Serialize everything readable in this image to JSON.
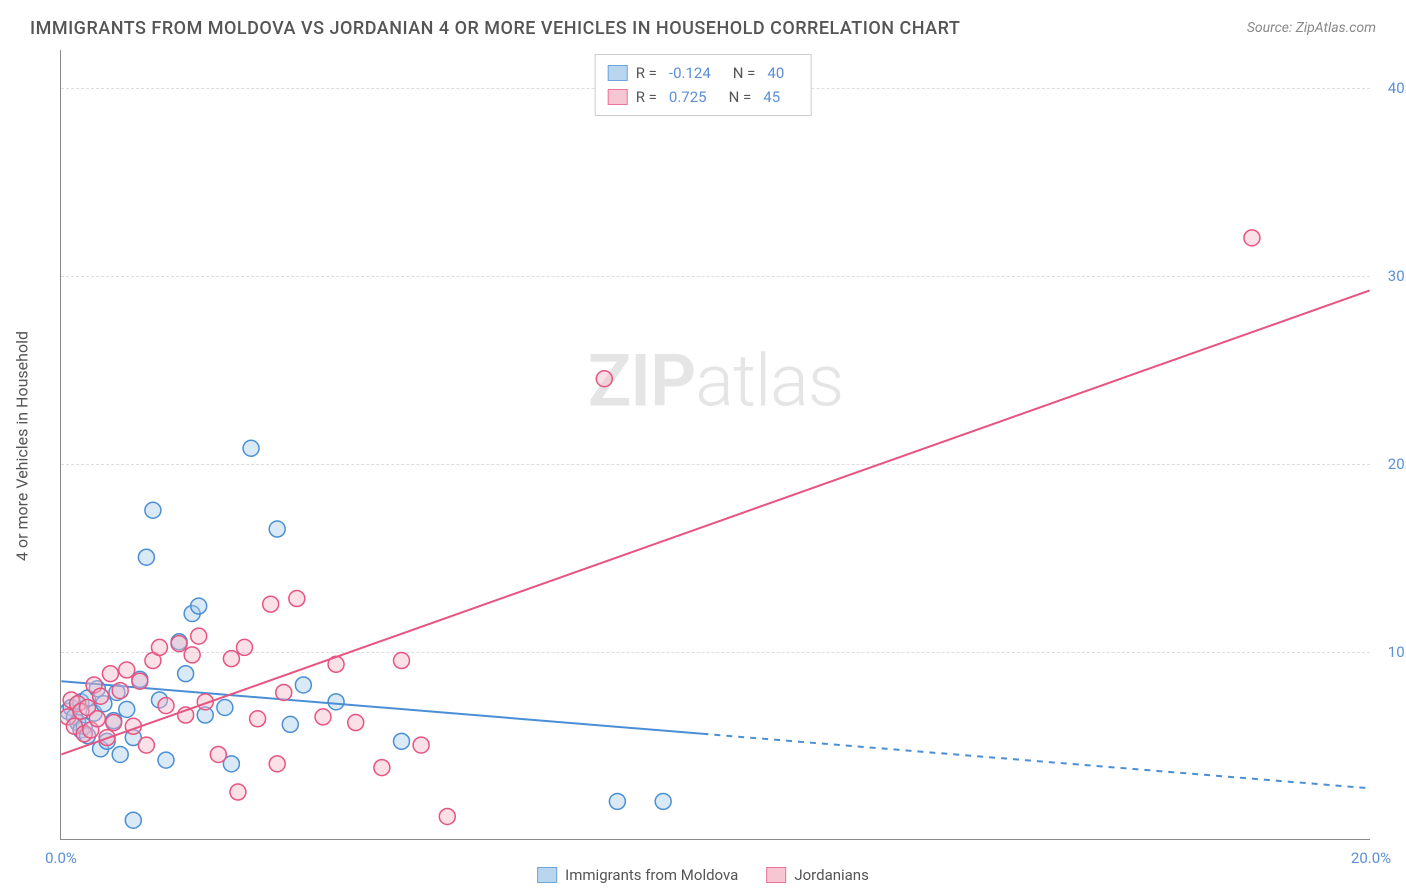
{
  "title": "IMMIGRANTS FROM MOLDOVA VS JORDANIAN 4 OR MORE VEHICLES IN HOUSEHOLD CORRELATION CHART",
  "source": "Source: ZipAtlas.com",
  "watermark_zip": "ZIP",
  "watermark_atlas": "atlas",
  "y_axis_label": "4 or more Vehicles in Household",
  "chart": {
    "type": "scatter",
    "background_color": "#ffffff",
    "grid_color": "#dddddd",
    "axis_color": "#888888",
    "xlim": [
      0,
      20
    ],
    "ylim": [
      0,
      42
    ],
    "x_ticks": [
      0,
      20
    ],
    "x_tick_labels": [
      "0.0%",
      "20.0%"
    ],
    "y_ticks": [
      10,
      20,
      30,
      40
    ],
    "y_tick_labels": [
      "10.0%",
      "20.0%",
      "30.0%",
      "40.0%"
    ],
    "tick_label_color": "#5b8fd6",
    "tick_fontsize": 15,
    "axis_label_fontsize": 16,
    "marker_radius": 8,
    "marker_stroke_width": 1.5,
    "marker_fill_opacity": 0.18,
    "trend_line_width": 2,
    "series": [
      {
        "id": "moldova",
        "legend_label": "Immigrants from Moldova",
        "R": "-0.124",
        "N": "40",
        "color_stroke": "#4a8fd6",
        "color_fill": "#a9cbea",
        "trend_from": [
          0,
          8.4
        ],
        "trend_to_solid": [
          9.8,
          5.6
        ],
        "trend_to_dashed": [
          20,
          2.7
        ],
        "points": [
          [
            0.1,
            6.8
          ],
          [
            0.15,
            7.0
          ],
          [
            0.2,
            6.5
          ],
          [
            0.25,
            6.2
          ],
          [
            0.3,
            7.3
          ],
          [
            0.3,
            5.8
          ],
          [
            0.35,
            6.0
          ],
          [
            0.4,
            7.5
          ],
          [
            0.4,
            5.5
          ],
          [
            0.5,
            6.7
          ],
          [
            0.55,
            8.0
          ],
          [
            0.6,
            4.8
          ],
          [
            0.65,
            7.2
          ],
          [
            0.7,
            5.2
          ],
          [
            0.8,
            6.3
          ],
          [
            0.85,
            7.8
          ],
          [
            0.9,
            4.5
          ],
          [
            1.0,
            6.9
          ],
          [
            1.1,
            5.4
          ],
          [
            1.2,
            8.5
          ],
          [
            1.3,
            15.0
          ],
          [
            1.4,
            17.5
          ],
          [
            1.5,
            7.4
          ],
          [
            1.6,
            4.2
          ],
          [
            1.8,
            10.5
          ],
          [
            1.9,
            8.8
          ],
          [
            2.0,
            12.0
          ],
          [
            2.1,
            12.4
          ],
          [
            2.2,
            6.6
          ],
          [
            2.5,
            7.0
          ],
          [
            2.6,
            4.0
          ],
          [
            2.9,
            20.8
          ],
          [
            3.3,
            16.5
          ],
          [
            3.5,
            6.1
          ],
          [
            3.7,
            8.2
          ],
          [
            4.2,
            7.3
          ],
          [
            5.2,
            5.2
          ],
          [
            1.1,
            1.0
          ],
          [
            8.5,
            2.0
          ],
          [
            9.2,
            2.0
          ]
        ]
      },
      {
        "id": "jordanian",
        "legend_label": "Jordanians",
        "R": "0.725",
        "N": "45",
        "color_stroke": "#e75480",
        "color_fill": "#f5b8c8",
        "trend_from": [
          0,
          4.5
        ],
        "trend_to_solid": [
          20,
          29.2
        ],
        "trend_to_dashed": null,
        "points": [
          [
            0.1,
            6.5
          ],
          [
            0.15,
            7.4
          ],
          [
            0.2,
            6.0
          ],
          [
            0.25,
            7.2
          ],
          [
            0.3,
            6.8
          ],
          [
            0.35,
            5.6
          ],
          [
            0.4,
            7.0
          ],
          [
            0.45,
            5.8
          ],
          [
            0.5,
            8.2
          ],
          [
            0.55,
            6.4
          ],
          [
            0.6,
            7.6
          ],
          [
            0.7,
            5.4
          ],
          [
            0.75,
            8.8
          ],
          [
            0.8,
            6.2
          ],
          [
            0.9,
            7.9
          ],
          [
            1.0,
            9.0
          ],
          [
            1.1,
            6.0
          ],
          [
            1.2,
            8.4
          ],
          [
            1.3,
            5.0
          ],
          [
            1.4,
            9.5
          ],
          [
            1.5,
            10.2
          ],
          [
            1.6,
            7.1
          ],
          [
            1.8,
            10.4
          ],
          [
            1.9,
            6.6
          ],
          [
            2.0,
            9.8
          ],
          [
            2.1,
            10.8
          ],
          [
            2.2,
            7.3
          ],
          [
            2.4,
            4.5
          ],
          [
            2.6,
            9.6
          ],
          [
            2.8,
            10.2
          ],
          [
            3.0,
            6.4
          ],
          [
            3.2,
            12.5
          ],
          [
            3.3,
            4.0
          ],
          [
            3.4,
            7.8
          ],
          [
            3.6,
            12.8
          ],
          [
            4.0,
            6.5
          ],
          [
            4.2,
            9.3
          ],
          [
            4.5,
            6.2
          ],
          [
            4.9,
            3.8
          ],
          [
            5.2,
            9.5
          ],
          [
            5.5,
            5.0
          ],
          [
            5.9,
            1.2
          ],
          [
            8.3,
            24.5
          ],
          [
            18.2,
            32.0
          ],
          [
            2.7,
            2.5
          ]
        ]
      }
    ]
  },
  "legend_top": {
    "R_label": "R =",
    "N_label": "N ="
  }
}
